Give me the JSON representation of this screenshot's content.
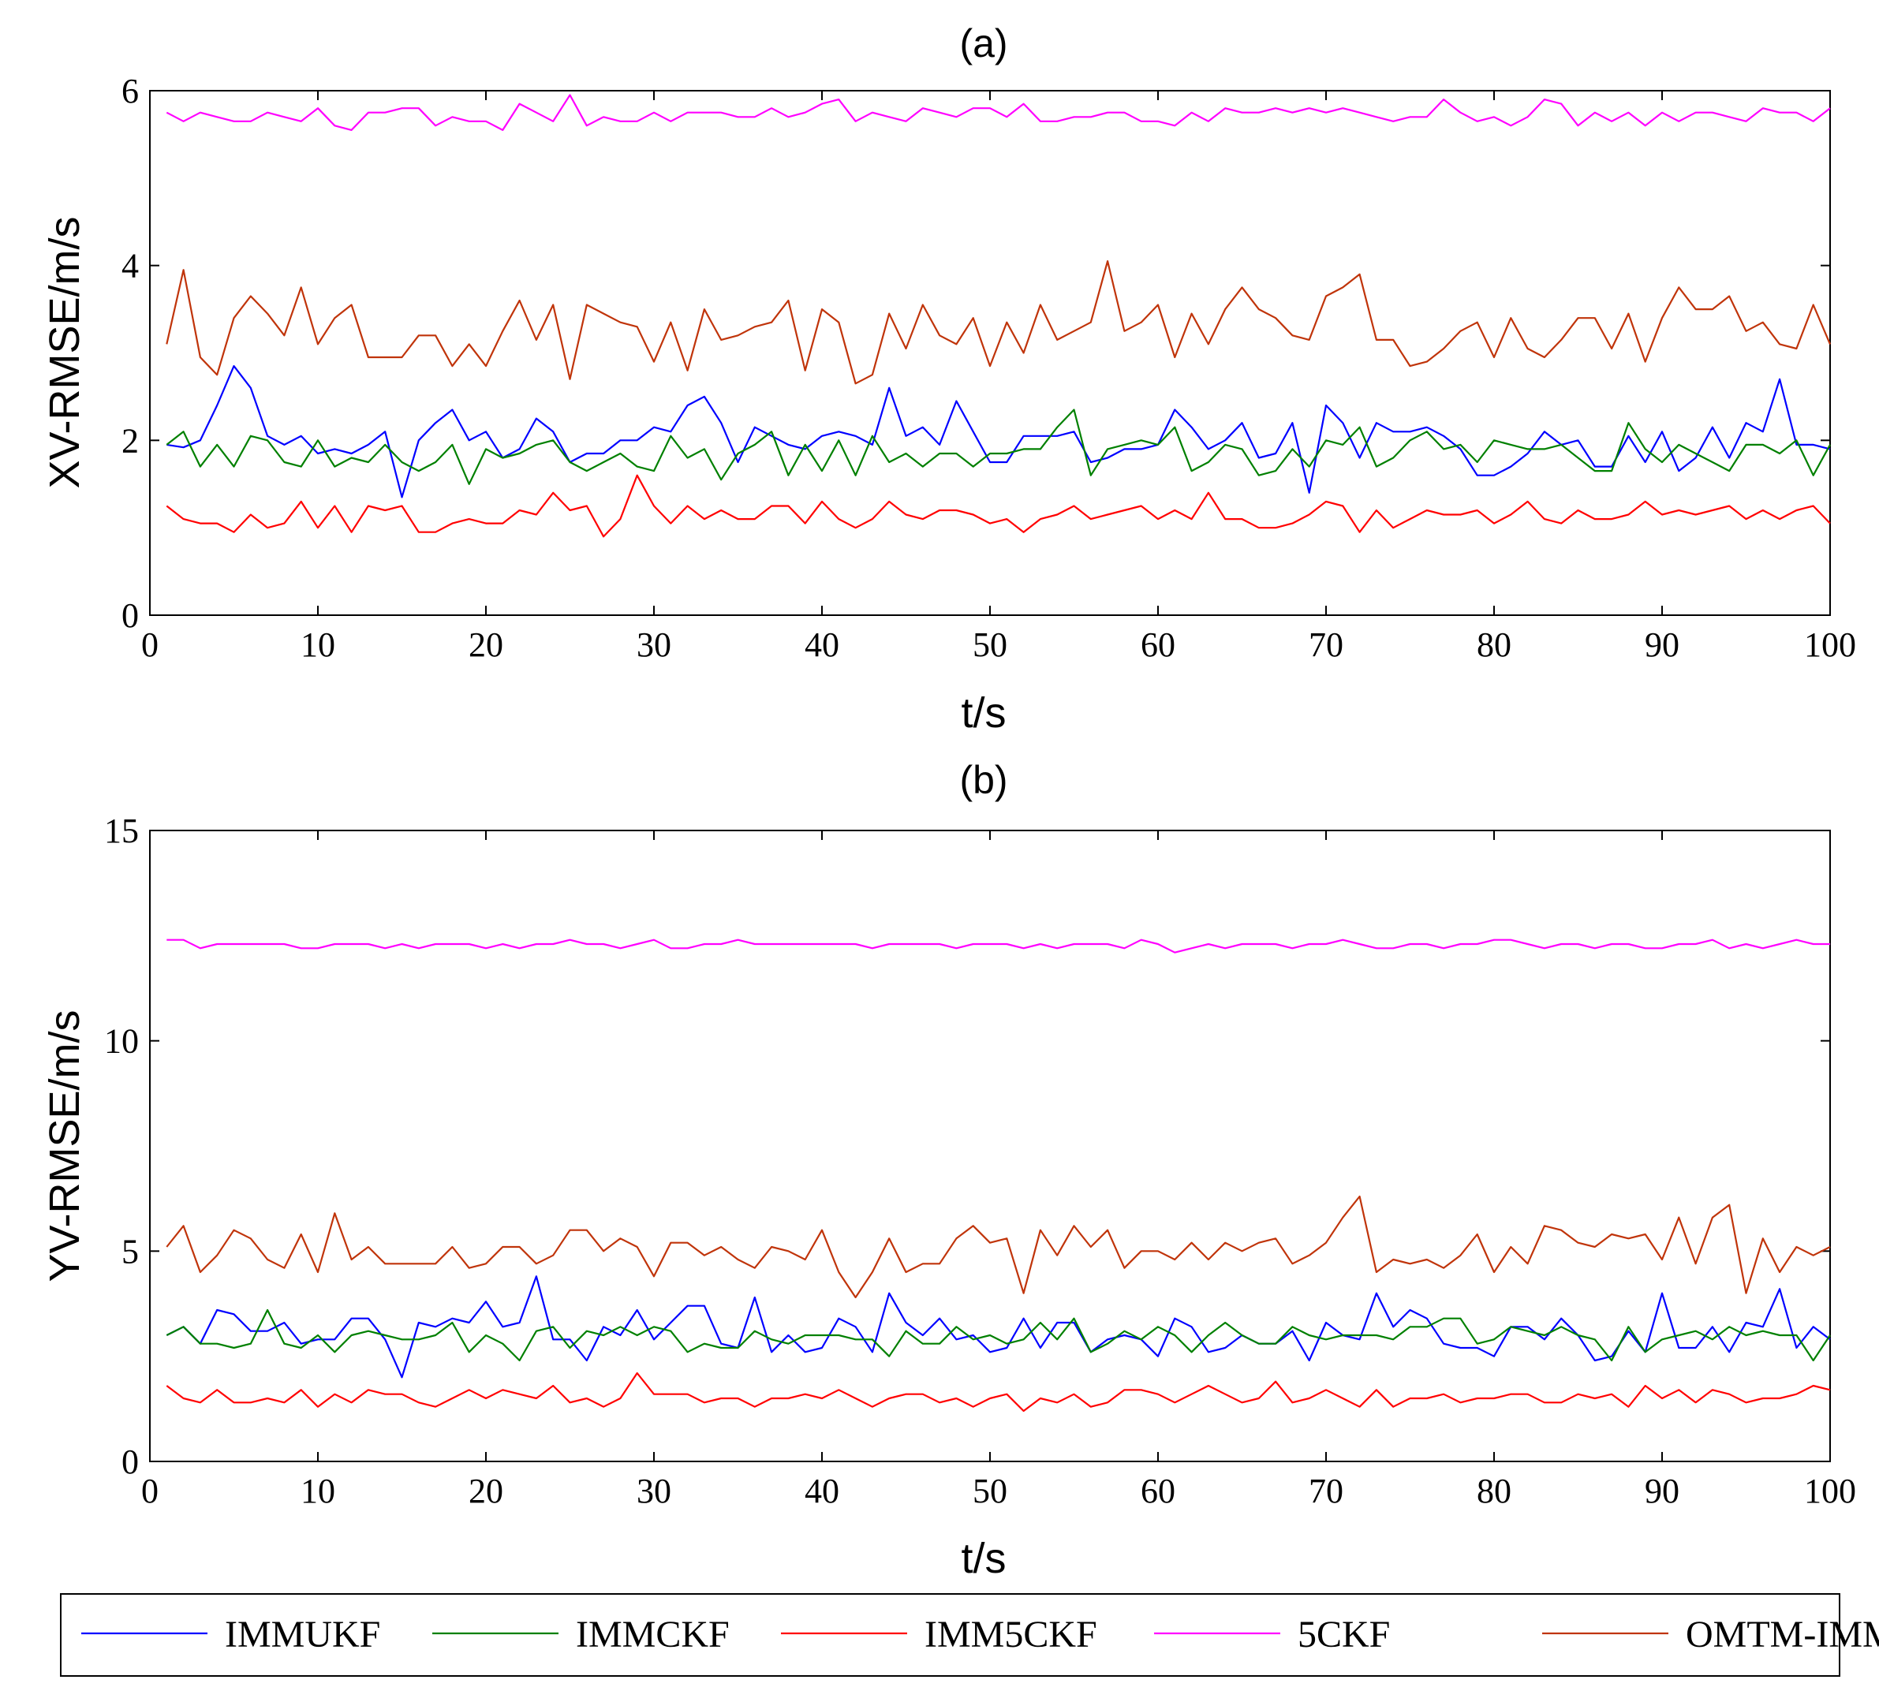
{
  "chart_data": [
    {
      "type": "line",
      "title": "(a)",
      "xlabel": "t/s",
      "ylabel": "XV-RMSE/m/s",
      "xlim": [
        0,
        100
      ],
      "ylim": [
        0,
        6
      ],
      "xticks": [
        0,
        10,
        20,
        30,
        40,
        50,
        60,
        70,
        80,
        90,
        100
      ],
      "yticks": [
        0,
        2,
        4,
        6
      ],
      "grid": false,
      "x_start": 1,
      "x_step": 1,
      "series": [
        {
          "name": "IMMUKF",
          "color": "#0000ff",
          "values": [
            1.95,
            1.92,
            2.0,
            2.4,
            2.85,
            2.6,
            2.05,
            1.95,
            2.05,
            1.85,
            1.9,
            1.85,
            1.95,
            2.1,
            1.35,
            2.0,
            2.2,
            2.35,
            2.0,
            2.1,
            1.8,
            1.9,
            2.25,
            2.1,
            1.75,
            1.85,
            1.85,
            2.0,
            2.0,
            2.15,
            2.1,
            2.4,
            2.5,
            2.2,
            1.75,
            2.15,
            2.05,
            1.95,
            1.9,
            2.05,
            2.1,
            2.05,
            1.95,
            2.6,
            2.05,
            2.15,
            1.95,
            2.45,
            2.1,
            1.75,
            1.75,
            2.05,
            2.05,
            2.05,
            2.1,
            1.75,
            1.8,
            1.9,
            1.9,
            1.95,
            2.35,
            2.15,
            1.9,
            2.0,
            2.2,
            1.8,
            1.85,
            2.2,
            1.4,
            2.4,
            2.2,
            1.8,
            2.2,
            2.1,
            2.1,
            2.15,
            2.05,
            1.9,
            1.6,
            1.6,
            1.7,
            1.85,
            2.1,
            1.95,
            2.0,
            1.7,
            1.7,
            2.05,
            1.75,
            2.1,
            1.65,
            1.8,
            2.15,
            1.8,
            2.2,
            2.1,
            2.7,
            1.95,
            1.95,
            1.9
          ]
        },
        {
          "name": "IMMCKF",
          "color": "#008000",
          "values": [
            1.95,
            2.1,
            1.7,
            1.95,
            1.7,
            2.05,
            2.0,
            1.75,
            1.7,
            2.0,
            1.7,
            1.8,
            1.75,
            1.95,
            1.75,
            1.65,
            1.75,
            1.95,
            1.5,
            1.9,
            1.8,
            1.85,
            1.95,
            2.0,
            1.75,
            1.65,
            1.75,
            1.85,
            1.7,
            1.65,
            2.05,
            1.8,
            1.9,
            1.55,
            1.85,
            1.95,
            2.1,
            1.6,
            1.95,
            1.65,
            2.0,
            1.6,
            2.05,
            1.75,
            1.85,
            1.7,
            1.85,
            1.85,
            1.7,
            1.85,
            1.85,
            1.9,
            1.9,
            2.15,
            2.35,
            1.6,
            1.9,
            1.95,
            2.0,
            1.95,
            2.15,
            1.65,
            1.75,
            1.95,
            1.9,
            1.6,
            1.65,
            1.9,
            1.7,
            2.0,
            1.95,
            2.15,
            1.7,
            1.8,
            2.0,
            2.1,
            1.9,
            1.95,
            1.75,
            2.0,
            1.95,
            1.9,
            1.9,
            1.95,
            1.8,
            1.65,
            1.65,
            2.2,
            1.9,
            1.75,
            1.95,
            1.85,
            1.75,
            1.65,
            1.95,
            1.95,
            1.85,
            2.0,
            1.6,
            1.95
          ]
        },
        {
          "name": "IMM5CKF",
          "color": "#ff0000",
          "values": [
            1.25,
            1.1,
            1.05,
            1.05,
            0.95,
            1.15,
            1.0,
            1.05,
            1.3,
            1.0,
            1.25,
            0.95,
            1.25,
            1.2,
            1.25,
            0.95,
            0.95,
            1.05,
            1.1,
            1.05,
            1.05,
            1.2,
            1.15,
            1.4,
            1.2,
            1.25,
            0.9,
            1.1,
            1.6,
            1.25,
            1.05,
            1.25,
            1.1,
            1.2,
            1.1,
            1.1,
            1.25,
            1.25,
            1.05,
            1.3,
            1.1,
            1.0,
            1.1,
            1.3,
            1.15,
            1.1,
            1.2,
            1.2,
            1.15,
            1.05,
            1.1,
            0.95,
            1.1,
            1.15,
            1.25,
            1.1,
            1.15,
            1.2,
            1.25,
            1.1,
            1.2,
            1.1,
            1.4,
            1.1,
            1.1,
            1.0,
            1.0,
            1.05,
            1.15,
            1.3,
            1.25,
            0.95,
            1.2,
            1.0,
            1.1,
            1.2,
            1.15,
            1.15,
            1.2,
            1.05,
            1.15,
            1.3,
            1.1,
            1.05,
            1.2,
            1.1,
            1.1,
            1.15,
            1.3,
            1.15,
            1.2,
            1.15,
            1.2,
            1.25,
            1.1,
            1.2,
            1.1,
            1.2,
            1.25,
            1.05
          ]
        },
        {
          "name": "5CKF",
          "color": "#ff00ff",
          "values": [
            5.75,
            5.65,
            5.75,
            5.7,
            5.65,
            5.65,
            5.75,
            5.7,
            5.65,
            5.8,
            5.6,
            5.55,
            5.75,
            5.75,
            5.8,
            5.8,
            5.6,
            5.7,
            5.65,
            5.65,
            5.55,
            5.85,
            5.75,
            5.65,
            5.95,
            5.6,
            5.7,
            5.65,
            5.65,
            5.75,
            5.65,
            5.75,
            5.75,
            5.75,
            5.7,
            5.7,
            5.8,
            5.7,
            5.75,
            5.85,
            5.9,
            5.65,
            5.75,
            5.7,
            5.65,
            5.8,
            5.75,
            5.7,
            5.8,
            5.8,
            5.7,
            5.85,
            5.65,
            5.65,
            5.7,
            5.7,
            5.75,
            5.75,
            5.65,
            5.65,
            5.6,
            5.75,
            5.65,
            5.8,
            5.75,
            5.75,
            5.8,
            5.75,
            5.8,
            5.75,
            5.8,
            5.75,
            5.7,
            5.65,
            5.7,
            5.7,
            5.9,
            5.75,
            5.65,
            5.7,
            5.6,
            5.7,
            5.9,
            5.85,
            5.6,
            5.75,
            5.65,
            5.75,
            5.6,
            5.75,
            5.65,
            5.75,
            5.75,
            5.7,
            5.65,
            5.8,
            5.75,
            5.75,
            5.65,
            5.8
          ]
        },
        {
          "name": "OMTM-IMM",
          "color": "#c0340a",
          "values": [
            3.1,
            3.95,
            2.95,
            2.75,
            3.4,
            3.65,
            3.45,
            3.2,
            3.75,
            3.1,
            3.4,
            3.55,
            2.95,
            2.95,
            2.95,
            3.2,
            3.2,
            2.85,
            3.1,
            2.85,
            3.25,
            3.6,
            3.15,
            3.55,
            2.7,
            3.55,
            3.45,
            3.35,
            3.3,
            2.9,
            3.35,
            2.8,
            3.5,
            3.15,
            3.2,
            3.3,
            3.35,
            3.6,
            2.8,
            3.5,
            3.35,
            2.65,
            2.75,
            3.45,
            3.05,
            3.55,
            3.2,
            3.1,
            3.4,
            2.85,
            3.35,
            3.0,
            3.55,
            3.15,
            3.25,
            3.35,
            4.05,
            3.25,
            3.35,
            3.55,
            2.95,
            3.45,
            3.1,
            3.5,
            3.75,
            3.5,
            3.4,
            3.2,
            3.15,
            3.65,
            3.75,
            3.9,
            3.15,
            3.15,
            2.85,
            2.9,
            3.05,
            3.25,
            3.35,
            2.95,
            3.4,
            3.05,
            2.95,
            3.15,
            3.4,
            3.4,
            3.05,
            3.45,
            2.9,
            3.4,
            3.75,
            3.5,
            3.5,
            3.65,
            3.25,
            3.35,
            3.1,
            3.05,
            3.55,
            3.1
          ]
        }
      ]
    },
    {
      "type": "line",
      "title": "(b)",
      "xlabel": "t/s",
      "ylabel": "YV-RMSE/m/s",
      "xlim": [
        0,
        100
      ],
      "ylim": [
        0,
        15
      ],
      "xticks": [
        0,
        10,
        20,
        30,
        40,
        50,
        60,
        70,
        80,
        90,
        100
      ],
      "yticks": [
        0,
        5,
        10,
        15
      ],
      "grid": false,
      "x_start": 1,
      "x_step": 1,
      "series": [
        {
          "name": "IMMUKF",
          "color": "#0000ff",
          "values": [
            3.0,
            3.2,
            2.8,
            3.6,
            3.5,
            3.1,
            3.1,
            3.3,
            2.8,
            2.9,
            2.9,
            3.4,
            3.4,
            2.9,
            2.0,
            3.3,
            3.2,
            3.4,
            3.3,
            3.8,
            3.2,
            3.3,
            4.4,
            2.9,
            2.9,
            2.4,
            3.2,
            3.0,
            3.6,
            2.9,
            3.3,
            3.7,
            3.7,
            2.8,
            2.7,
            3.9,
            2.6,
            3.0,
            2.6,
            2.7,
            3.4,
            3.2,
            2.6,
            4.0,
            3.3,
            3.0,
            3.4,
            2.9,
            3.0,
            2.6,
            2.7,
            3.4,
            2.7,
            3.3,
            3.3,
            2.6,
            2.9,
            3.0,
            2.9,
            2.5,
            3.4,
            3.2,
            2.6,
            2.7,
            3.0,
            2.8,
            2.8,
            3.1,
            2.4,
            3.3,
            3.0,
            2.9,
            4.0,
            3.2,
            3.6,
            3.4,
            2.8,
            2.7,
            2.7,
            2.5,
            3.2,
            3.2,
            2.9,
            3.4,
            3.0,
            2.4,
            2.5,
            3.1,
            2.6,
            4.0,
            2.7,
            2.7,
            3.2,
            2.6,
            3.3,
            3.2,
            4.1,
            2.7,
            3.2,
            2.9
          ]
        },
        {
          "name": "IMMCKF",
          "color": "#008000",
          "values": [
            3.0,
            3.2,
            2.8,
            2.8,
            2.7,
            2.8,
            3.6,
            2.8,
            2.7,
            3.0,
            2.6,
            3.0,
            3.1,
            3.0,
            2.9,
            2.9,
            3.0,
            3.3,
            2.6,
            3.0,
            2.8,
            2.4,
            3.1,
            3.2,
            2.7,
            3.1,
            3.0,
            3.2,
            3.0,
            3.2,
            3.1,
            2.6,
            2.8,
            2.7,
            2.7,
            3.1,
            2.9,
            2.8,
            3.0,
            3.0,
            3.0,
            2.9,
            2.9,
            2.5,
            3.1,
            2.8,
            2.8,
            3.2,
            2.9,
            3.0,
            2.8,
            2.9,
            3.3,
            2.9,
            3.4,
            2.6,
            2.8,
            3.1,
            2.9,
            3.2,
            3.0,
            2.6,
            3.0,
            3.3,
            3.0,
            2.8,
            2.8,
            3.2,
            3.0,
            2.9,
            3.0,
            3.0,
            3.0,
            2.9,
            3.2,
            3.2,
            3.4,
            3.4,
            2.8,
            2.9,
            3.2,
            3.1,
            3.0,
            3.2,
            3.0,
            2.9,
            2.4,
            3.2,
            2.6,
            2.9,
            3.0,
            3.1,
            2.9,
            3.2,
            3.0,
            3.1,
            3.0,
            3.0,
            2.4,
            3.0
          ]
        },
        {
          "name": "IMM5CKF",
          "color": "#ff0000",
          "values": [
            1.8,
            1.5,
            1.4,
            1.7,
            1.4,
            1.4,
            1.5,
            1.4,
            1.7,
            1.3,
            1.6,
            1.4,
            1.7,
            1.6,
            1.6,
            1.4,
            1.3,
            1.5,
            1.7,
            1.5,
            1.7,
            1.6,
            1.5,
            1.8,
            1.4,
            1.5,
            1.3,
            1.5,
            2.1,
            1.6,
            1.6,
            1.6,
            1.4,
            1.5,
            1.5,
            1.3,
            1.5,
            1.5,
            1.6,
            1.5,
            1.7,
            1.5,
            1.3,
            1.5,
            1.6,
            1.6,
            1.4,
            1.5,
            1.3,
            1.5,
            1.6,
            1.2,
            1.5,
            1.4,
            1.6,
            1.3,
            1.4,
            1.7,
            1.7,
            1.6,
            1.4,
            1.6,
            1.8,
            1.6,
            1.4,
            1.5,
            1.9,
            1.4,
            1.5,
            1.7,
            1.5,
            1.3,
            1.7,
            1.3,
            1.5,
            1.5,
            1.6,
            1.4,
            1.5,
            1.5,
            1.6,
            1.6,
            1.4,
            1.4,
            1.6,
            1.5,
            1.6,
            1.3,
            1.8,
            1.5,
            1.7,
            1.4,
            1.7,
            1.6,
            1.4,
            1.5,
            1.5,
            1.6,
            1.8,
            1.7
          ]
        },
        {
          "name": "5CKF",
          "color": "#ff00ff",
          "values": [
            12.4,
            12.4,
            12.2,
            12.3,
            12.3,
            12.3,
            12.3,
            12.3,
            12.2,
            12.2,
            12.3,
            12.3,
            12.3,
            12.2,
            12.3,
            12.2,
            12.3,
            12.3,
            12.3,
            12.2,
            12.3,
            12.2,
            12.3,
            12.3,
            12.4,
            12.3,
            12.3,
            12.2,
            12.3,
            12.4,
            12.2,
            12.2,
            12.3,
            12.3,
            12.4,
            12.3,
            12.3,
            12.3,
            12.3,
            12.3,
            12.3,
            12.3,
            12.2,
            12.3,
            12.3,
            12.3,
            12.3,
            12.2,
            12.3,
            12.3,
            12.3,
            12.2,
            12.3,
            12.2,
            12.3,
            12.3,
            12.3,
            12.2,
            12.4,
            12.3,
            12.1,
            12.2,
            12.3,
            12.2,
            12.3,
            12.3,
            12.3,
            12.2,
            12.3,
            12.3,
            12.4,
            12.3,
            12.2,
            12.2,
            12.3,
            12.3,
            12.2,
            12.3,
            12.3,
            12.4,
            12.4,
            12.3,
            12.2,
            12.3,
            12.3,
            12.2,
            12.3,
            12.3,
            12.2,
            12.2,
            12.3,
            12.3,
            12.4,
            12.2,
            12.3,
            12.2,
            12.3,
            12.4,
            12.3,
            12.3
          ]
        },
        {
          "name": "OMTM-IMM",
          "color": "#c0340a",
          "values": [
            5.1,
            5.6,
            4.5,
            4.9,
            5.5,
            5.3,
            4.8,
            4.6,
            5.4,
            4.5,
            5.9,
            4.8,
            5.1,
            4.7,
            4.7,
            4.7,
            4.7,
            5.1,
            4.6,
            4.7,
            5.1,
            5.1,
            4.7,
            4.9,
            5.5,
            5.5,
            5.0,
            5.3,
            5.1,
            4.4,
            5.2,
            5.2,
            4.9,
            5.1,
            4.8,
            4.6,
            5.1,
            5.0,
            4.8,
            5.5,
            4.5,
            3.9,
            4.5,
            5.3,
            4.5,
            4.7,
            4.7,
            5.3,
            5.6,
            5.2,
            5.3,
            4.0,
            5.5,
            4.9,
            5.6,
            5.1,
            5.5,
            4.6,
            5.0,
            5.0,
            4.8,
            5.2,
            4.8,
            5.2,
            5.0,
            5.2,
            5.3,
            4.7,
            4.9,
            5.2,
            5.8,
            6.3,
            4.5,
            4.8,
            4.7,
            4.8,
            4.6,
            4.9,
            5.4,
            4.5,
            5.1,
            4.7,
            5.6,
            5.5,
            5.2,
            5.1,
            5.4,
            5.3,
            5.4,
            4.8,
            5.8,
            4.7,
            5.8,
            6.1,
            4.0,
            5.3,
            4.5,
            5.1,
            4.9,
            5.1
          ]
        }
      ]
    }
  ],
  "legend": {
    "position": "bottom",
    "entries": [
      {
        "name": "IMMUKF",
        "color": "#0000ff"
      },
      {
        "name": "IMMCKF",
        "color": "#008000"
      },
      {
        "name": "IMM5CKF",
        "color": "#ff0000"
      },
      {
        "name": "5CKF",
        "color": "#ff00ff"
      },
      {
        "name": "OMTM-IMM",
        "color": "#c0340a"
      }
    ]
  }
}
